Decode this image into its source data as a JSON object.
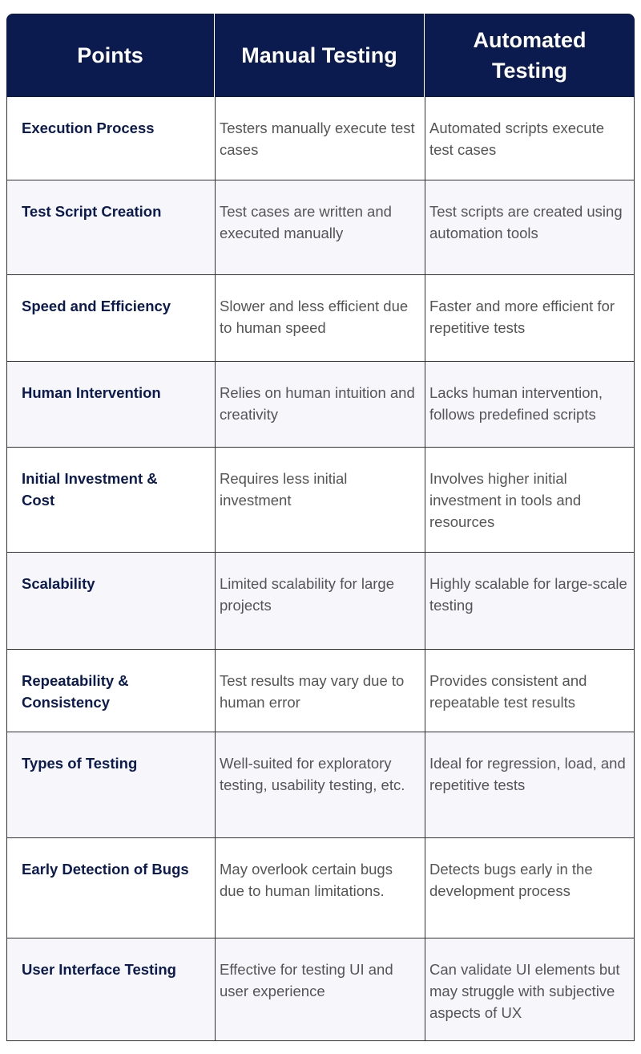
{
  "table": {
    "headers": [
      "Points",
      "Manual Testing",
      "Automated Testing"
    ],
    "rows": [
      [
        "Execution Process",
        "Testers manually execute test cases",
        "Automated scripts execute test cases"
      ],
      [
        "Test Script Creation",
        "Test cases are written and executed manually",
        "Test scripts are created using automation tools"
      ],
      [
        "Speed and Efficiency",
        "Slower and less efficient due to human speed",
        "Faster and more efficient for repetitive tests"
      ],
      [
        "Human Intervention",
        "Relies on human intuition and creativity",
        "Lacks human intervention, follows predefined scripts"
      ],
      [
        "Initial Investment & Cost",
        "Requires less initial investment",
        "Involves higher initial investment in tools and resources"
      ],
      [
        "Scalability",
        "Limited scalability for large projects",
        "Highly scalable for large-scale testing"
      ],
      [
        "Repeatability & Consistency",
        "Test results may vary due to human error",
        "Provides consistent and repeatable test results"
      ],
      [
        "Types of Testing",
        "Well-suited for exploratory testing, usability testing, etc.",
        "Ideal for regression, load, and repetitive tests"
      ],
      [
        "Early Detection of Bugs",
        "May overlook certain bugs due to human limitations.",
        "Detects bugs early in the development process"
      ],
      [
        "User Interface Testing",
        "Effective for testing UI and user experience",
        "Can validate UI elements but may struggle with subjective aspects of UX"
      ]
    ]
  }
}
